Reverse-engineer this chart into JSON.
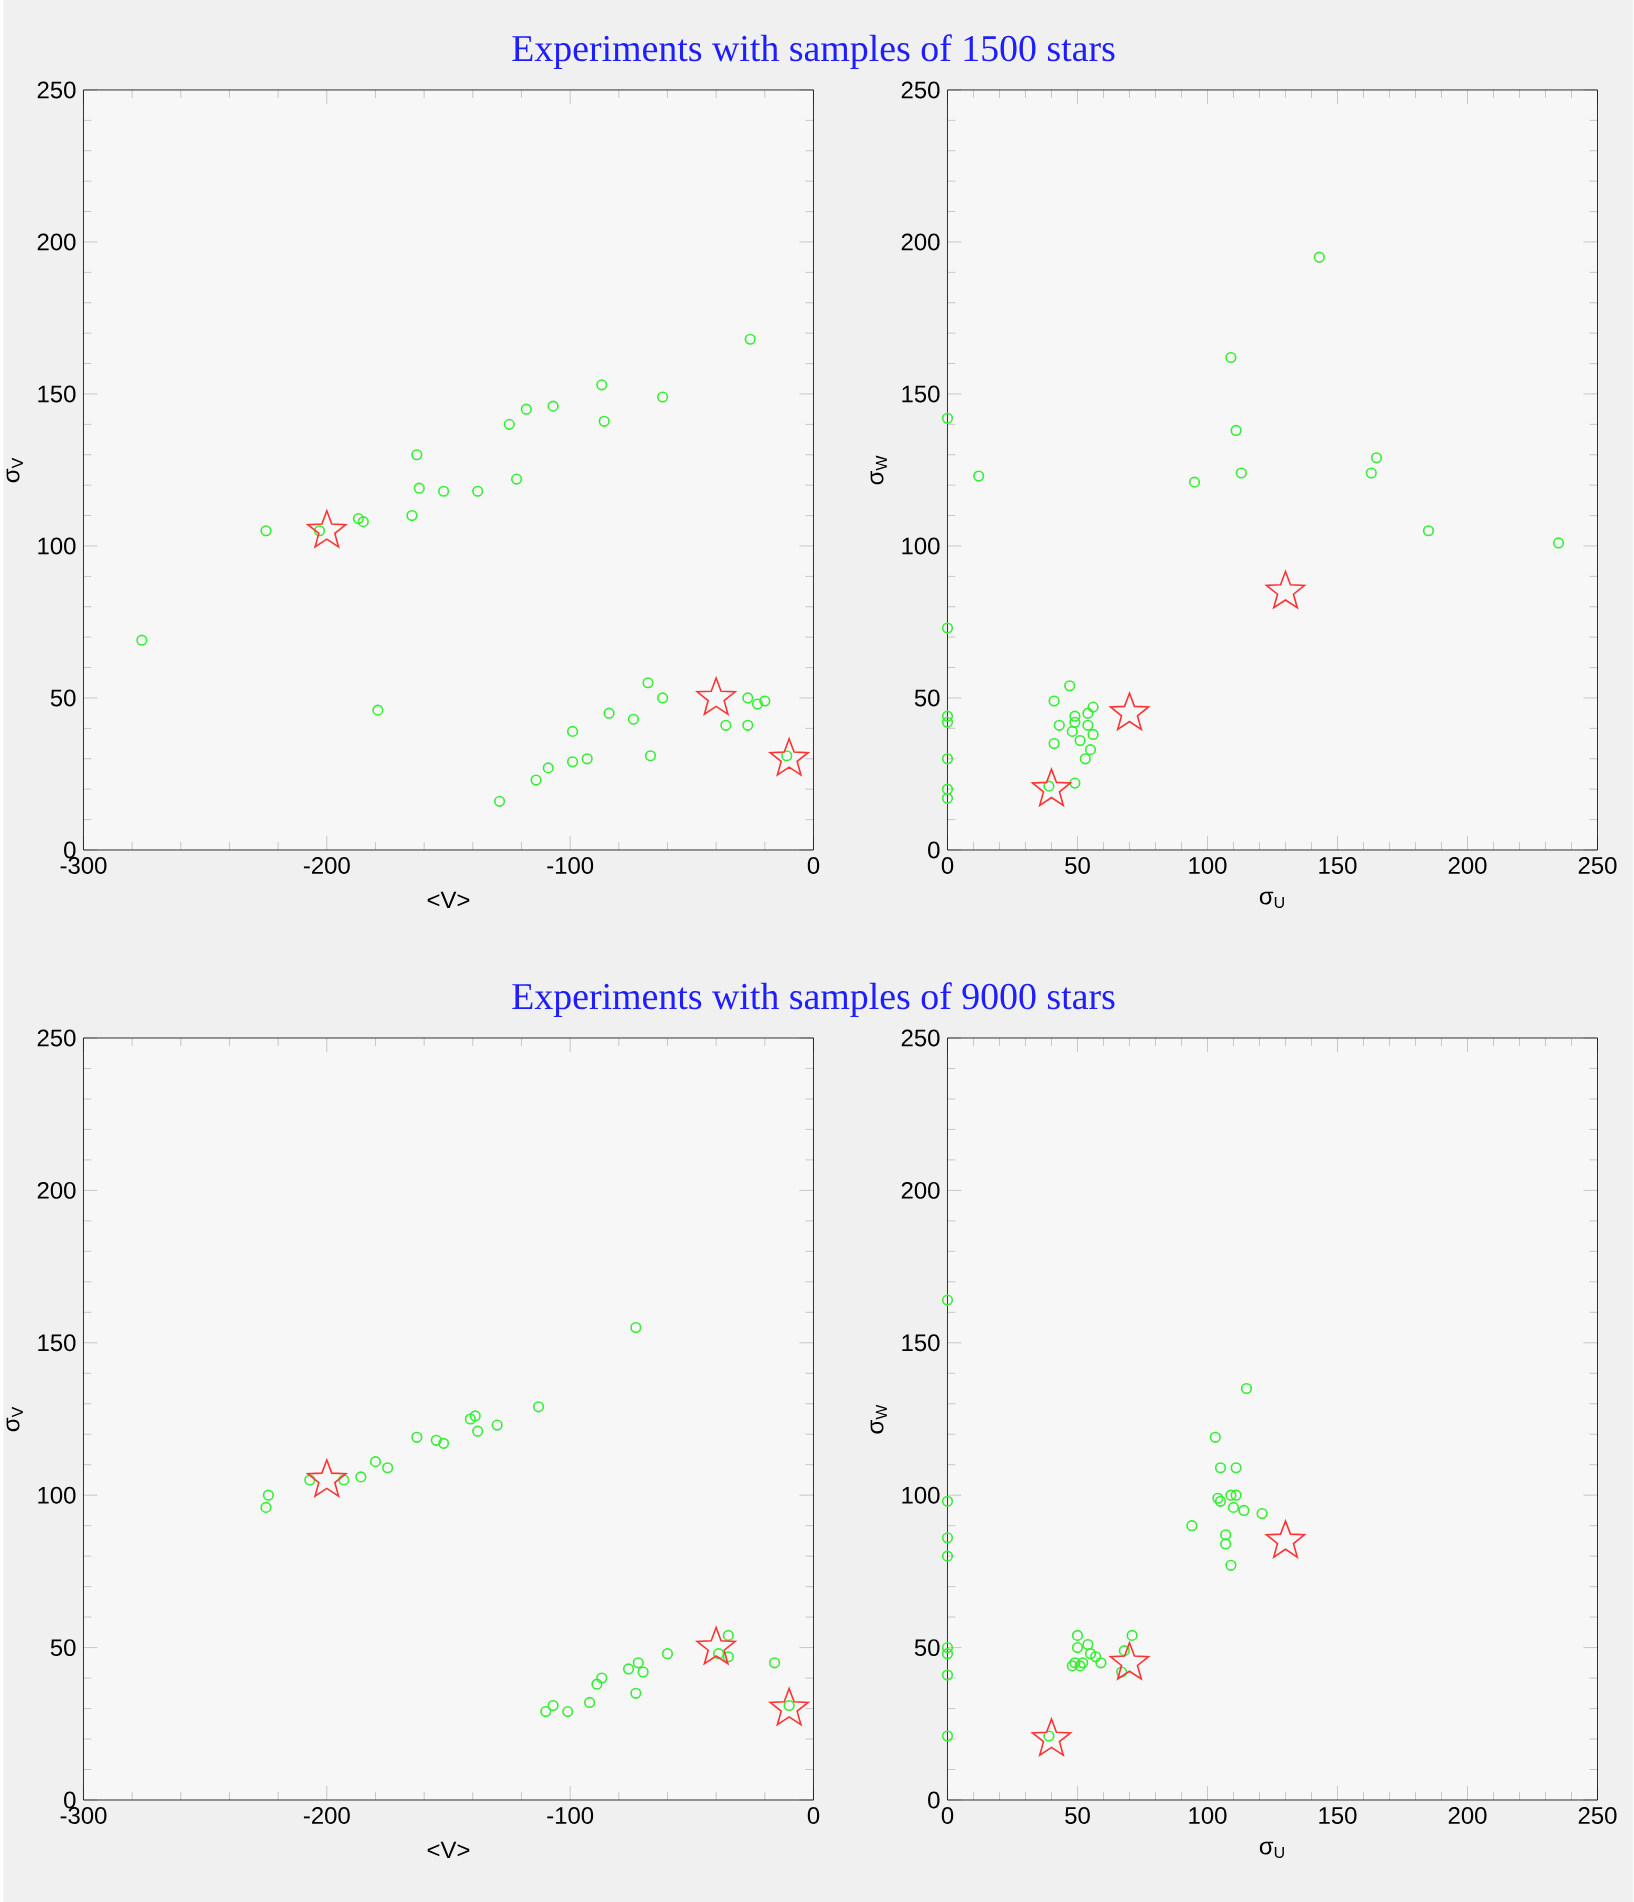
{
  "chart_data": [
    {
      "type": "scatter",
      "title": "Experiments with samples of 1500 stars",
      "xlabel": "<V>",
      "ylabel": "σ$_{V}$",
      "xlim": [
        -300,
        0
      ],
      "ylim": [
        0,
        250
      ],
      "xticks": [
        -300,
        -200,
        -100,
        0
      ],
      "yticks": [
        0,
        50,
        100,
        150,
        200,
        250
      ],
      "series": [
        {
          "color": "#33ee33",
          "marker": "circle",
          "x": [
            -276,
            -225,
            -203,
            -187,
            -185,
            -179,
            -165,
            -163,
            -162,
            -152,
            -138,
            -125,
            -122,
            -118,
            -107,
            -87,
            -86,
            -62,
            -26,
            -129,
            -114,
            -109,
            -99,
            -99,
            -93,
            -84,
            -74,
            -68,
            -67,
            -62,
            -36,
            -27,
            -27,
            -23,
            -20,
            -11
          ],
          "values": [
            69,
            105,
            105,
            109,
            108,
            46,
            110,
            130,
            119,
            118,
            118,
            140,
            122,
            145,
            146,
            153,
            141,
            149,
            168,
            16,
            23,
            27,
            29,
            39,
            30,
            45,
            43,
            55,
            31,
            50,
            41,
            50,
            41,
            48,
            49,
            31
          ]
        },
        {
          "color": "#ff3333",
          "marker": "star",
          "x": [
            -200,
            -40,
            -10
          ],
          "values": [
            105,
            50,
            30
          ]
        }
      ]
    },
    {
      "type": "scatter",
      "xlabel": "σ$_{U}$",
      "ylabel": "σ$_{W}$",
      "xlim": [
        0,
        250
      ],
      "ylim": [
        0,
        250
      ],
      "xticks": [
        0,
        50,
        100,
        150,
        200,
        250
      ],
      "yticks": [
        0,
        50,
        100,
        150,
        200,
        250
      ],
      "series": [
        {
          "color": "#33ee33",
          "marker": "circle",
          "x": [
            143,
            109,
            111,
            113,
            95,
            12,
            163,
            165,
            185,
            235,
            0,
            0,
            0,
            0,
            0,
            0,
            0,
            47,
            41,
            49,
            54,
            56,
            43,
            48,
            51,
            54,
            56,
            55,
            53,
            41,
            49,
            49,
            39
          ],
          "values": [
            195,
            162,
            138,
            124,
            121,
            123,
            124,
            129,
            105,
            101,
            142,
            73,
            44,
            42,
            30,
            20,
            17,
            54,
            49,
            44,
            45,
            47,
            41,
            39,
            36,
            41,
            38,
            33,
            30,
            35,
            22,
            42,
            21
          ]
        },
        {
          "color": "#ff3333",
          "marker": "star",
          "x": [
            40,
            70,
            130
          ],
          "values": [
            20,
            45,
            85
          ]
        }
      ]
    },
    {
      "type": "scatter",
      "title": "Experiments with samples of 9000 stars",
      "xlabel": "<V>",
      "ylabel": "σ$_{V}$",
      "xlim": [
        -300,
        0
      ],
      "ylim": [
        0,
        250
      ],
      "xticks": [
        -300,
        -200,
        -100,
        0
      ],
      "yticks": [
        0,
        50,
        100,
        150,
        200,
        250
      ],
      "series": [
        {
          "color": "#33ee33",
          "marker": "circle",
          "x": [
            -225,
            -224,
            -207,
            -193,
            -186,
            -180,
            -175,
            -163,
            -155,
            -152,
            -141,
            -139,
            -138,
            -130,
            -113,
            -73,
            -110,
            -107,
            -101,
            -92,
            -89,
            -87,
            -76,
            -72,
            -70,
            -73,
            -60,
            -39,
            -35,
            -35,
            -16,
            -10
          ],
          "values": [
            96,
            100,
            105,
            105,
            106,
            111,
            109,
            119,
            118,
            117,
            125,
            126,
            121,
            123,
            129,
            155,
            29,
            31,
            29,
            32,
            38,
            40,
            43,
            45,
            42,
            35,
            48,
            48,
            54,
            47,
            45,
            31
          ]
        },
        {
          "color": "#ff3333",
          "marker": "star",
          "x": [
            -200,
            -40,
            -10
          ],
          "values": [
            105,
            50,
            30
          ]
        }
      ]
    },
    {
      "type": "scatter",
      "xlabel": "σ$_{U}$",
      "ylabel": "σ$_{W}$",
      "xlim": [
        0,
        250
      ],
      "ylim": [
        0,
        250
      ],
      "xticks": [
        0,
        50,
        100,
        150,
        200,
        250
      ],
      "yticks": [
        0,
        50,
        100,
        150,
        200,
        250
      ],
      "series": [
        {
          "color": "#33ee33",
          "marker": "circle",
          "x": [
            115,
            103,
            105,
            111,
            104,
            105,
            109,
            111,
            110,
            114,
            121,
            94,
            107,
            107,
            109,
            50,
            50,
            54,
            55,
            57,
            59,
            52,
            49,
            48,
            51,
            71,
            68,
            67,
            0,
            0,
            0,
            0,
            0,
            0,
            0,
            0,
            39
          ],
          "values": [
            135,
            119,
            109,
            109,
            99,
            98,
            100,
            100,
            96,
            95,
            94,
            90,
            87,
            84,
            77,
            54,
            50,
            51,
            48,
            47,
            45,
            45,
            45,
            44,
            44,
            54,
            49,
            42,
            164,
            98,
            86,
            80,
            50,
            48,
            41,
            21,
            21
          ]
        },
        {
          "color": "#ff3333",
          "marker": "star",
          "x": [
            40,
            70,
            130
          ],
          "values": [
            20,
            45,
            85
          ]
        }
      ]
    }
  ]
}
